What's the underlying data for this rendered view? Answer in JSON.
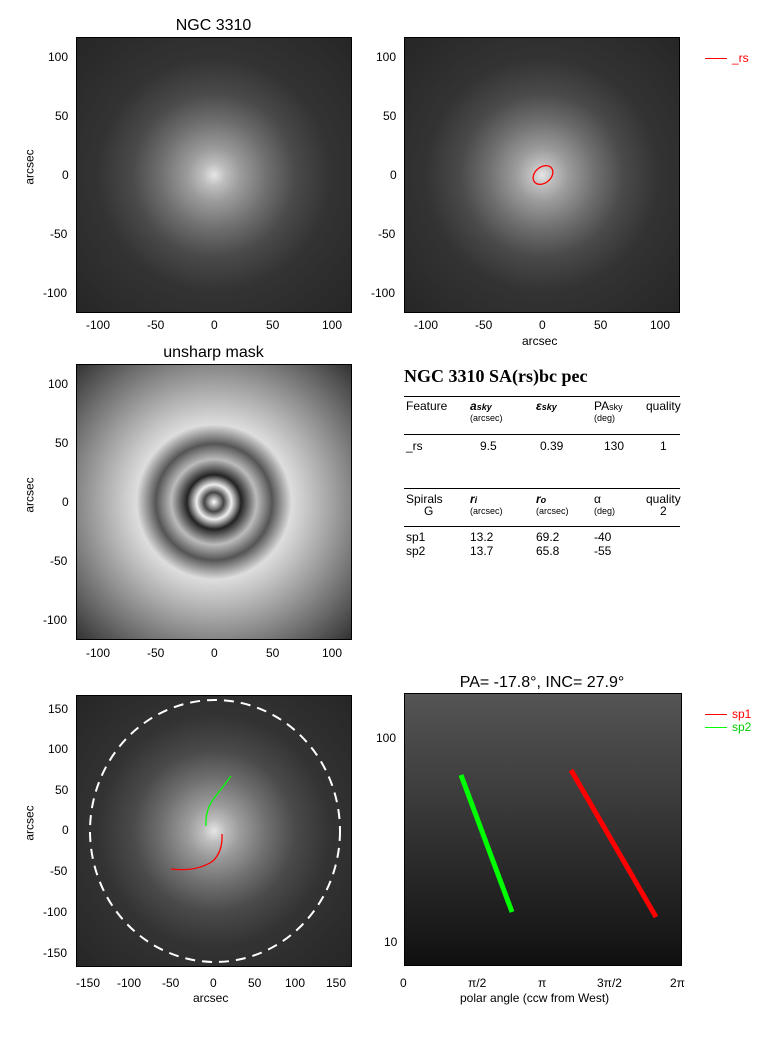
{
  "panels": {
    "top_left": {
      "title": "NGC 3310",
      "ylabel": "arcsec",
      "yticks": [
        "100",
        "50",
        "0",
        "-50",
        "-100"
      ],
      "xticks": [
        "-100",
        "-50",
        "0",
        "50",
        "100"
      ]
    },
    "top_right": {
      "xlabel": "arcsec",
      "yticks": [
        "100",
        "50",
        "0",
        "-50",
        "-100"
      ],
      "xticks": [
        "-100",
        "-50",
        "0",
        "50",
        "100"
      ],
      "legend": "_rs",
      "legend_color": "#ff0000"
    },
    "mid_left": {
      "title": "unsharp mask",
      "ylabel": "arcsec",
      "yticks": [
        "100",
        "50",
        "0",
        "-50",
        "-100"
      ],
      "xticks": [
        "-100",
        "-50",
        "0",
        "50",
        "100"
      ]
    },
    "bottom_left": {
      "ylabel": "arcsec",
      "xlabel": "arcsec",
      "yticks": [
        "150",
        "100",
        "50",
        "0",
        "-50",
        "-100",
        "-150"
      ],
      "xticks": [
        "-150",
        "-100",
        "-50",
        "0",
        "50",
        "100",
        "150"
      ]
    },
    "bottom_right": {
      "title": "PA= -17.8°, INC=  27.9°",
      "xlabel": "polar angle (ccw from West)",
      "yticks": [
        "100",
        "10"
      ],
      "xticks": [
        "0",
        "π/2",
        "π",
        "3π/2",
        "2π"
      ],
      "legend": [
        {
          "label": "sp1",
          "color": "#ff0000"
        },
        {
          "label": "sp2",
          "color": "#00ff00"
        }
      ]
    }
  },
  "info": {
    "heading": "NGC 3310  SA(rs)bc pec",
    "ring_table": {
      "headers": [
        "Feature",
        "a",
        "ε",
        "PA",
        "quality"
      ],
      "subs": [
        "sky",
        "sky",
        "sky"
      ],
      "units": [
        "(arcsec)",
        "(deg)"
      ],
      "row": [
        "_rs",
        "9.5",
        "0.39",
        "130",
        "1"
      ]
    },
    "spiral_table": {
      "headers": [
        "Spirals",
        "r",
        "r",
        "α",
        "quality"
      ],
      "subs": [
        "i",
        "o"
      ],
      "class": "G",
      "units": [
        "(arcsec)",
        "(arcsec)",
        "(deg)"
      ],
      "quality_value": "2",
      "rows": [
        [
          "sp1",
          "13.2",
          "69.2",
          "-40"
        ],
        [
          "sp2",
          "13.7",
          "65.8",
          "-55"
        ]
      ]
    }
  }
}
